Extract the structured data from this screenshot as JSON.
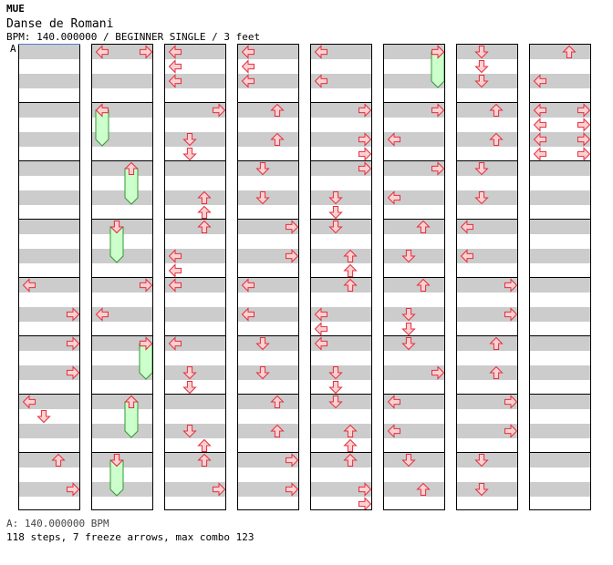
{
  "header": {
    "site": "MUE",
    "title": "Danse de Romani",
    "meta": "BPM: 140.000000 / BEGINNER SINGLE / 3 feet"
  },
  "marker": {
    "label": "A"
  },
  "footer": {
    "bpm": "A: 140.000000 BPM",
    "stats": "118 steps, 7 freeze arrows, max combo 123"
  },
  "colors": {
    "arrow_fill": "#ffd0d0",
    "arrow_stroke": "#e03040",
    "freeze_fill": "#ccffcc",
    "freeze_stroke": "#339933",
    "band": "#cccccc"
  },
  "columns": [
    {
      "notes": [],
      "freezes": []
    },
    {
      "notes": [
        [
          0,
          "L"
        ],
        [
          0,
          "R"
        ],
        [
          0.5,
          "L"
        ],
        [
          0,
          "R"
        ]
      ],
      "freezes": []
    },
    {
      "notes": [
        [
          0,
          "L"
        ],
        [
          0.25,
          "L"
        ],
        [
          0.5,
          "L"
        ]
      ],
      "freezes": []
    },
    {
      "notes": [
        [
          0,
          "L"
        ],
        [
          0.25,
          "L"
        ],
        [
          0.5,
          "L"
        ]
      ],
      "freezes": []
    },
    {
      "notes": [
        [
          0,
          "L"
        ],
        [
          0.5,
          "L"
        ]
      ],
      "freezes": []
    },
    {
      "notes": [
        [
          0,
          "R"
        ]
      ],
      "freezes": [
        [
          0,
          0.5,
          "R"
        ]
      ]
    },
    {
      "notes": [
        [
          0,
          "D"
        ],
        [
          0.25,
          "D"
        ],
        [
          0.5,
          "D"
        ]
      ],
      "freezes": []
    },
    {
      "notes": [
        [
          0,
          "U"
        ],
        [
          0.5,
          "L"
        ]
      ],
      "freezes": []
    }
  ]
}
